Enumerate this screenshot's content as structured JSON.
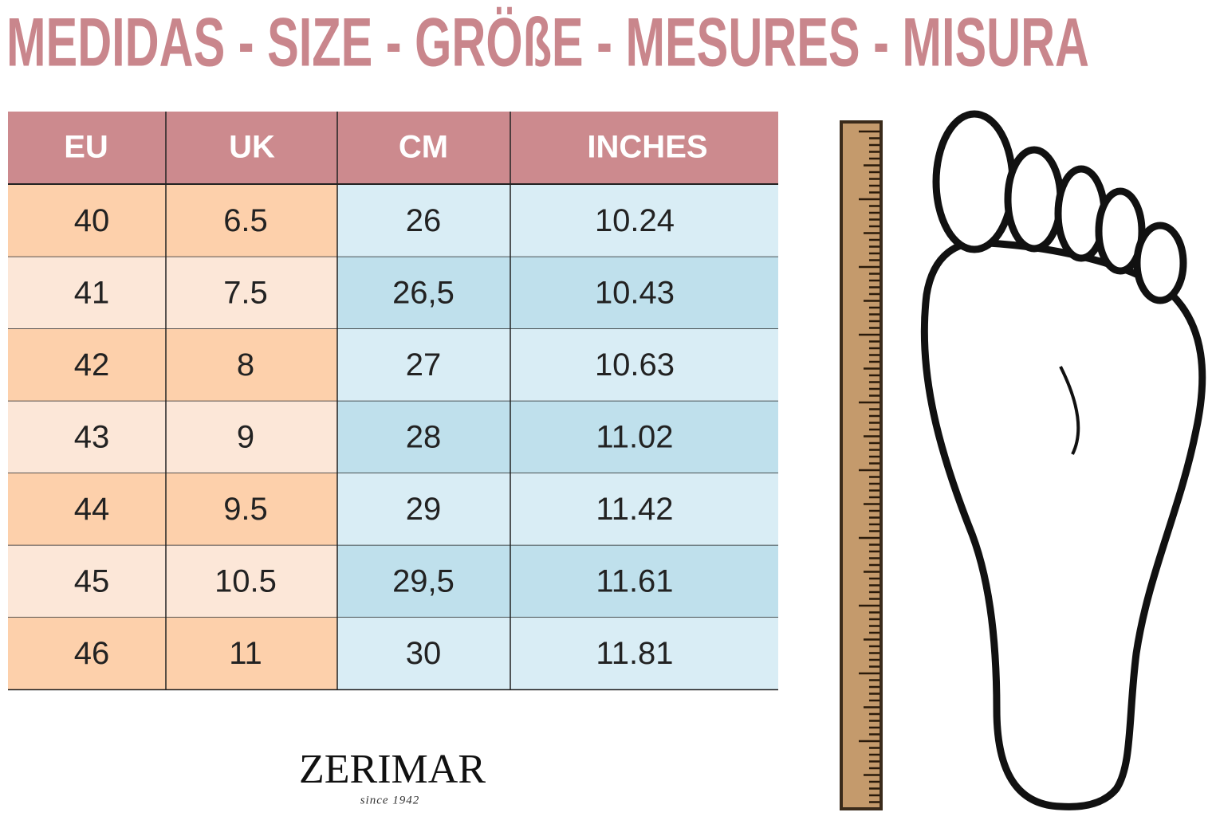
{
  "header": {
    "title": "MEDIDAS - SIZE - GRÖßE - MESURES - MISURA"
  },
  "table": {
    "headers": [
      "EU",
      "UK",
      "CM",
      "INCHES"
    ],
    "rows": [
      [
        "40",
        "6.5",
        "26",
        "10.24"
      ],
      [
        "41",
        "7.5",
        "26,5",
        "10.43"
      ],
      [
        "42",
        "8",
        "27",
        "10.63"
      ],
      [
        "43",
        "9",
        "28",
        "11.02"
      ],
      [
        "44",
        "9.5",
        "29",
        "11.42"
      ],
      [
        "45",
        "10.5",
        "29,5",
        "11.61"
      ],
      [
        "46",
        "11",
        "30",
        "11.81"
      ]
    ]
  },
  "brand": {
    "name": "ZERIMAR",
    "since": "since 1942"
  }
}
